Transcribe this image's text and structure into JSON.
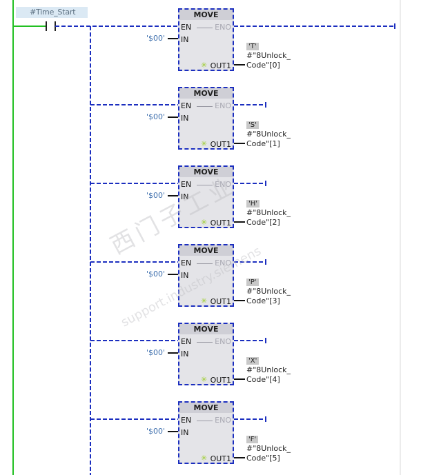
{
  "contact": {
    "label": "#Time_Start"
  },
  "blocks": [
    {
      "title": "MOVE",
      "en": "EN",
      "in": "IN",
      "eno": "ENO",
      "out": "OUT1",
      "in_value": "'$00'",
      "out_const": "'T'",
      "out_var_line1": "#\"8Unlock_",
      "out_var_line2": "Code\"[0]"
    },
    {
      "title": "MOVE",
      "en": "EN",
      "in": "IN",
      "eno": "ENO",
      "out": "OUT1",
      "in_value": "'$00'",
      "out_const": "'S'",
      "out_var_line1": "#\"8Unlock_",
      "out_var_line2": "Code\"[1]"
    },
    {
      "title": "MOVE",
      "en": "EN",
      "in": "IN",
      "eno": "ENO",
      "out": "OUT1",
      "in_value": "'$00'",
      "out_const": "'H'",
      "out_var_line1": "#\"8Unlock_",
      "out_var_line2": "Code\"[2]"
    },
    {
      "title": "MOVE",
      "en": "EN",
      "in": "IN",
      "eno": "ENO",
      "out": "OUT1",
      "in_value": "'$00'",
      "out_const": "'P'",
      "out_var_line1": "#\"8Unlock_",
      "out_var_line2": "Code\"[3]"
    },
    {
      "title": "MOVE",
      "en": "EN",
      "in": "IN",
      "eno": "ENO",
      "out": "OUT1",
      "in_value": "'$00'",
      "out_const": "'X'",
      "out_var_line1": "#\"8Unlock_",
      "out_var_line2": "Code\"[4]"
    },
    {
      "title": "MOVE",
      "en": "EN",
      "in": "IN",
      "eno": "ENO",
      "out": "OUT1",
      "in_value": "'$00'",
      "out_const": "'F'",
      "out_var_line1": "#\"8Unlock_",
      "out_var_line2": "Code\"[5]"
    }
  ],
  "colors": {
    "power_rail": "#22c022",
    "wire": "#1b2ebf",
    "constant": "#3e6fad"
  },
  "watermark": {
    "main": "西门子工业",
    "sub": "support.industry.siemens"
  }
}
